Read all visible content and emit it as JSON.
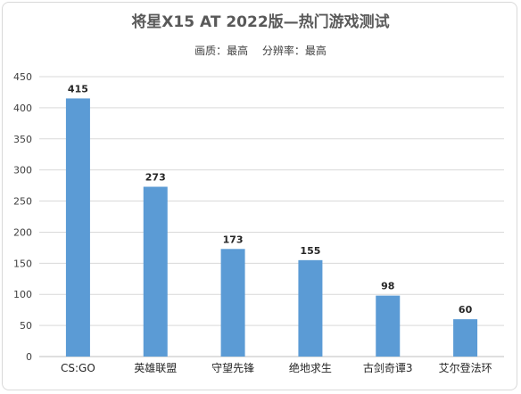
{
  "title": "将星X15 AT 2022版—热门游戏测试",
  "subtitle": {
    "quality": "画质：最高",
    "resolution": "分辨率：最高"
  },
  "colors": {
    "bar": "#5B9BD5",
    "grid": "#d9d9d9",
    "text": "#404040"
  },
  "chart_data": {
    "type": "bar",
    "title": "将星X15 AT 2022版—热门游戏测试",
    "subtitle": "画质：最高 分辨率：最高",
    "xlabel": "",
    "ylabel": "",
    "categories": [
      "CS:GO",
      "英雄联盟",
      "守望先锋",
      "绝地求生",
      "古剑奇谭3",
      "艾尔登法环"
    ],
    "values": [
      415,
      273,
      173,
      155,
      98,
      60
    ],
    "ylim": [
      0,
      450
    ],
    "yticks": [
      0,
      50,
      100,
      150,
      200,
      250,
      300,
      350,
      400,
      450
    ],
    "grid": true,
    "legend": "none"
  }
}
